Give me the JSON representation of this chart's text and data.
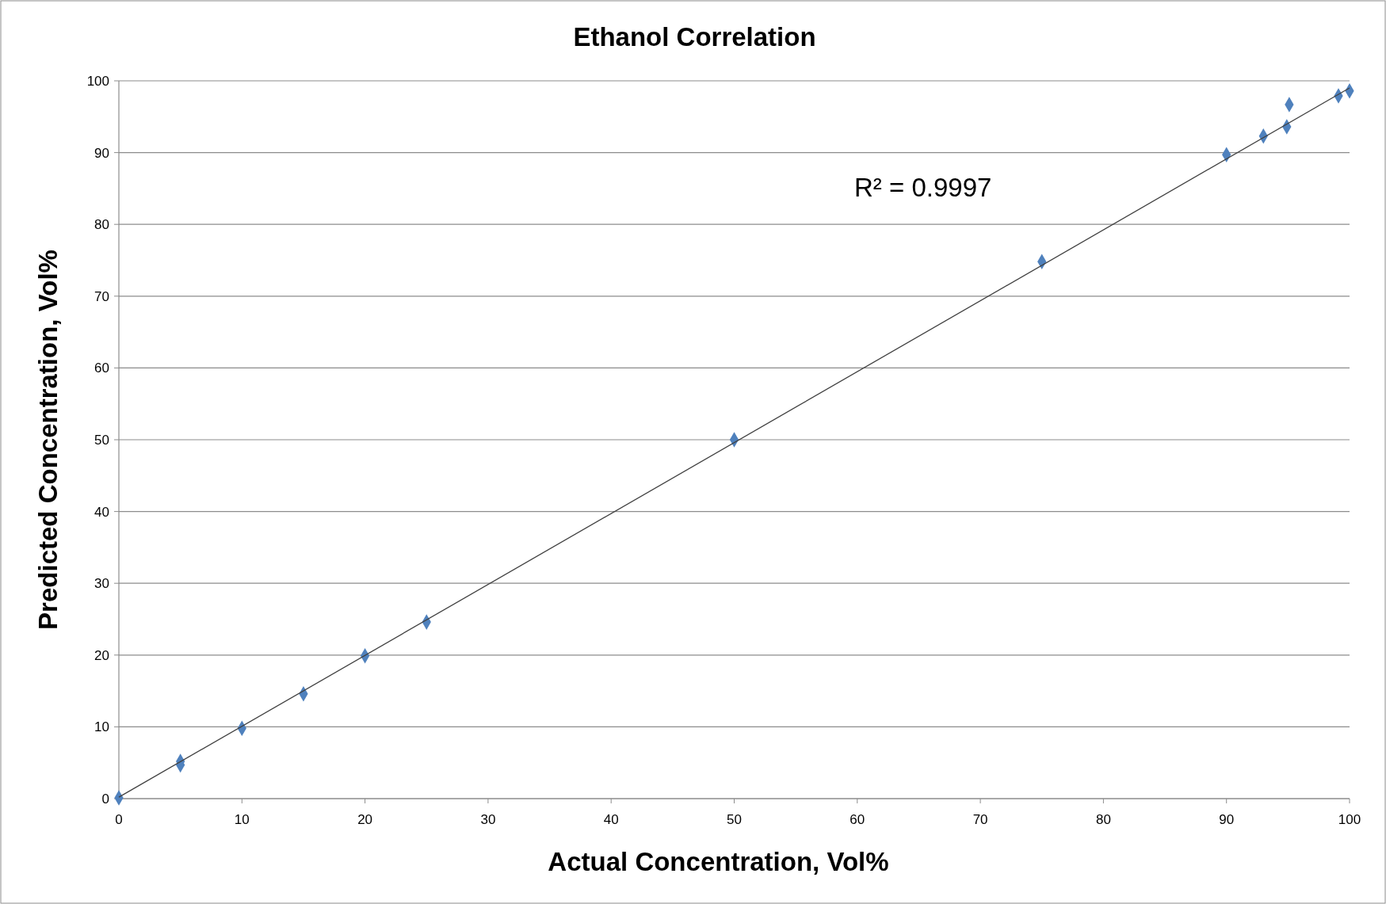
{
  "chart_data": {
    "type": "scatter",
    "title": "Ethanol Correlation",
    "xlabel": "Actual Concentration, Vol%",
    "ylabel": "Predicted Concentration,  Vol%",
    "x": [
      0,
      5,
      5,
      10,
      15,
      20,
      25,
      50,
      75,
      90,
      93,
      94.9,
      95.1,
      99.1,
      100
    ],
    "series": [
      {
        "color": "#4f81bd",
        "marker": "diamond",
        "values": [
          0.1,
          5.2,
          4.7,
          9.8,
          14.6,
          19.9,
          24.6,
          50.0,
          74.8,
          89.7,
          92.3,
          93.6,
          96.7,
          97.9,
          98.6
        ]
      },
      {
        "type": "line",
        "color": "#404040",
        "x": [
          0,
          100
        ],
        "values": [
          0.2,
          99.0
        ],
        "marker": "none"
      }
    ],
    "annotations": [
      "R² = 0.9997"
    ],
    "xlim": [
      0,
      100
    ],
    "ylim": [
      0,
      100
    ],
    "xticks": [
      0,
      10,
      20,
      30,
      40,
      50,
      60,
      70,
      80,
      90,
      100
    ],
    "yticks": [
      0,
      10,
      20,
      30,
      40,
      50,
      60,
      70,
      80,
      90,
      100
    ],
    "grid": "y"
  }
}
